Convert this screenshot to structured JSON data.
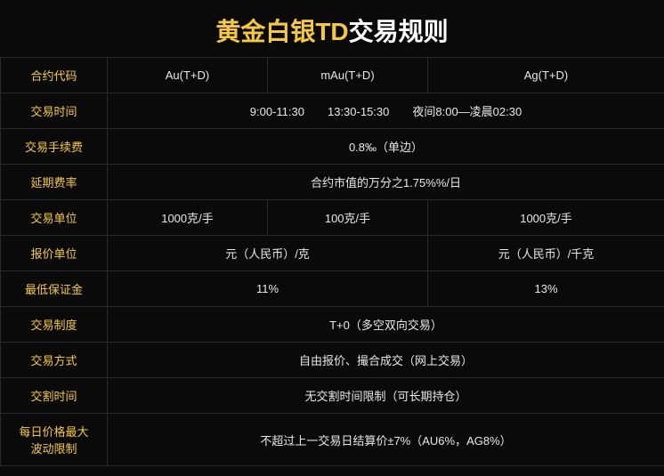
{
  "colors": {
    "background": "#0a0a0a",
    "border": "#2a2a2a",
    "accent": "#f5c843",
    "text": "#e8e8e8",
    "title_white": "#ffffff"
  },
  "title": {
    "part1": "黄金白银TD",
    "part2": "交易规则"
  },
  "table": {
    "headerRow": {
      "label": "合约代码",
      "c1": "Au(T+D)",
      "c2": "mAu(T+D)",
      "c3": "Ag(T+D)"
    },
    "rows": [
      {
        "label": "交易时间",
        "span": 3,
        "value": "9:00-11:30　　13:30-15:30　　夜间8:00—凌晨02:30"
      },
      {
        "label": "交易手续费",
        "span": 3,
        "value": "0.8‰（单边）"
      },
      {
        "label": "延期费率",
        "span": 3,
        "value": "合约市值的万分之1.75%%/日"
      },
      {
        "label": "交易单位",
        "c1": "1000克/手",
        "c2": "100克/手",
        "c3": "1000克/手"
      },
      {
        "label": "报价单位",
        "c12": "元（人民币）/克",
        "c3": "元（人民币）/千克"
      },
      {
        "label": "最低保证金",
        "c12": "11%",
        "c3": "13%"
      },
      {
        "label": "交易制度",
        "span": 3,
        "value": "T+0（多空双向交易）"
      },
      {
        "label": "交易方式",
        "span": 3,
        "value": "自由报价、撮合成交（网上交易）"
      },
      {
        "label": "交割时间",
        "span": 3,
        "value": "无交割时间限制（可长期持仓）"
      },
      {
        "label": "每日价格最大\n波动限制",
        "span": 3,
        "value": "不超过上一交易日结算价±7%（AU6%，AG8%）"
      }
    ]
  }
}
